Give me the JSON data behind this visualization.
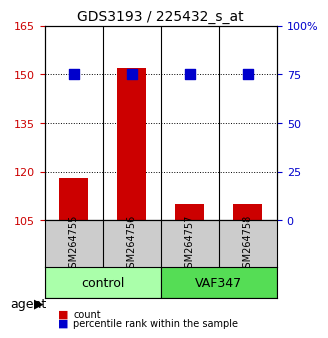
{
  "title": "GDS3193 / 225432_s_at",
  "samples": [
    "GSM264755",
    "GSM264756",
    "GSM264757",
    "GSM264758"
  ],
  "counts": [
    118,
    152,
    110,
    110
  ],
  "percentile_ranks": [
    75,
    75,
    75,
    75
  ],
  "groups": [
    "control",
    "control",
    "VAF347",
    "VAF347"
  ],
  "group_labels": [
    "control",
    "VAF347"
  ],
  "group_colors": [
    "#aaffaa",
    "#55dd55"
  ],
  "ylim_left": [
    105,
    165
  ],
  "yticks_left": [
    105,
    120,
    135,
    150,
    165
  ],
  "ylim_right": [
    0,
    100
  ],
  "yticks_right": [
    0,
    25,
    50,
    75,
    100
  ],
  "yright_labels": [
    "0",
    "25",
    "50",
    "75",
    "100%"
  ],
  "bar_color": "#cc0000",
  "dot_color": "#0000cc",
  "bar_width": 0.5,
  "dot_size": 60,
  "xlabel": "agent",
  "legend_items": [
    "count",
    "percentile rank within the sample"
  ],
  "legend_colors": [
    "#cc0000",
    "#0000cc"
  ],
  "grid_yticks": [
    120,
    135,
    150
  ],
  "sample_box_color": "#cccccc",
  "group_label_row1": "control",
  "group_label_row2": "VAF347"
}
